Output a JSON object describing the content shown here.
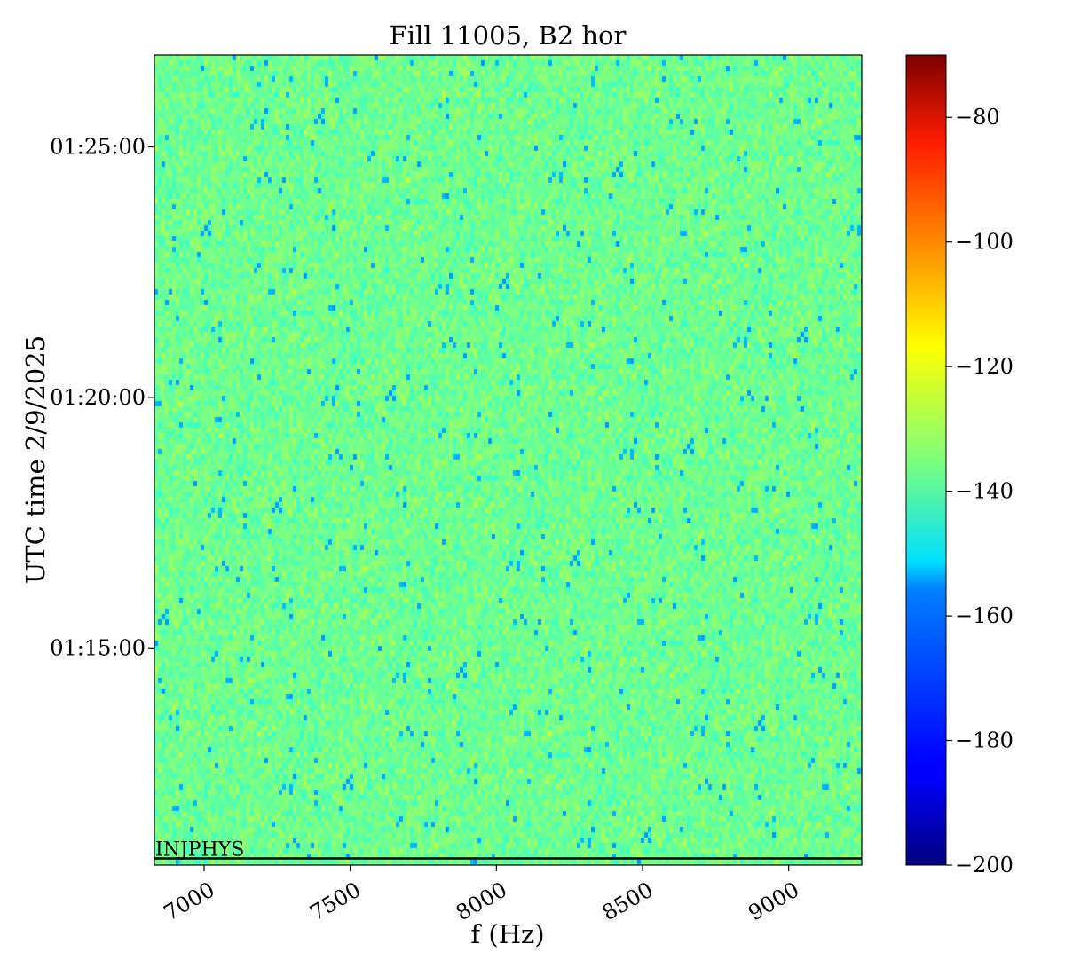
{
  "chart_data": {
    "type": "heatmap",
    "title": "Fill 11005, B2 hor",
    "xlabel": "f (Hz)",
    "ylabel": "UTC time 2/9/2025",
    "xlim": [
      6830,
      9250
    ],
    "xticks": [
      7000,
      7500,
      8000,
      8500,
      9000
    ],
    "xtick_labels": [
      "7000",
      "7500",
      "8000",
      "8500",
      "9000"
    ],
    "ylim": [
      "01:10:40",
      "01:26:50"
    ],
    "yticks": [
      "01:15:00",
      "01:20:00",
      "01:25:00"
    ],
    "ytick_labels": [
      "01:15:00",
      "01:20:00",
      "01:25:00"
    ],
    "colorbar": {
      "colormap": "jet",
      "vmin": -200,
      "vmax": -70,
      "ticks": [
        -200,
        -180,
        -160,
        -140,
        -120,
        -100,
        -80
      ],
      "tick_labels": [
        "−200",
        "−180",
        "−160",
        "−140",
        "−120",
        "−100",
        "−80"
      ]
    },
    "value_summary": {
      "typical": -137,
      "spread": 6,
      "min_spots": -165
    },
    "annotations": [
      {
        "text": "INJPHYS",
        "y": "01:10:48",
        "style": "horizontal line"
      }
    ]
  }
}
